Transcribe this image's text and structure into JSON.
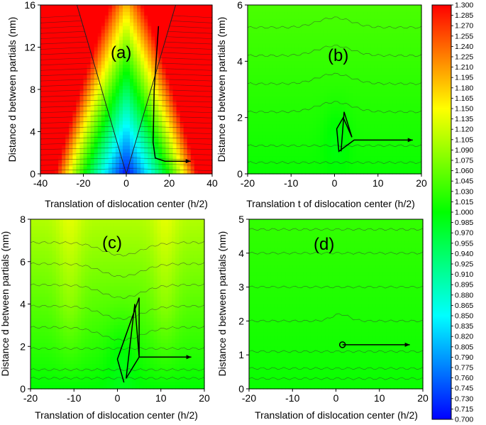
{
  "chart_data": [
    {
      "type": "heatmap",
      "panel_label": "(a)",
      "xlabel": "Translation of dislocation center (h/2)",
      "ylabel": "Distance d between partials (nm)",
      "xlim": [
        -40,
        40
      ],
      "ylim": [
        0,
        16
      ],
      "xticks": [
        -40,
        -20,
        0,
        20,
        40
      ],
      "yticks": [
        0,
        4,
        8,
        12,
        16
      ],
      "field": "v-shaped valley",
      "path": [
        [
          15,
          14
        ],
        [
          13,
          8
        ],
        [
          12.5,
          3
        ],
        [
          13.5,
          1.5
        ],
        [
          18,
          1.2
        ],
        [
          30,
          1.2
        ]
      ]
    },
    {
      "type": "heatmap",
      "panel_label": "(b)",
      "xlabel": "Translation t of dislocation center (h/2)",
      "ylabel": "Distance d between partials (nm)",
      "xlim": [
        -20,
        20
      ],
      "ylim": [
        0,
        6
      ],
      "xticks": [
        -20,
        -10,
        0,
        10,
        20
      ],
      "yticks": [
        0,
        2,
        4,
        6
      ],
      "field": "central minimum",
      "path": [
        [
          1.5,
          0.8
        ],
        [
          2.2,
          2.2
        ],
        [
          4.0,
          1.3
        ],
        [
          2.0,
          2.0
        ],
        [
          0.5,
          1.6
        ],
        [
          1.0,
          0.8
        ],
        [
          4.5,
          1.2
        ],
        [
          18,
          1.2
        ]
      ]
    },
    {
      "type": "heatmap",
      "panel_label": "(c)",
      "xlabel": "Translation of dislocation center (h/2)",
      "ylabel": "Distance d between partials (nm)",
      "xlim": [
        -20,
        20
      ],
      "ylim": [
        0,
        8
      ],
      "xticks": [
        -20,
        -10,
        0,
        10,
        20
      ],
      "yticks": [
        0,
        2,
        4,
        6,
        8
      ],
      "field": "central trough with side walls",
      "path": [
        [
          1.5,
          0.3
        ],
        [
          0,
          1.4
        ],
        [
          5,
          4.3
        ],
        [
          5,
          1.5
        ],
        [
          4,
          4.0
        ],
        [
          2,
          0.5
        ],
        [
          5,
          1.5
        ],
        [
          17,
          1.5
        ]
      ]
    },
    {
      "type": "heatmap",
      "panel_label": "(d)",
      "xlabel": "Translation of dislocation center (h/2)",
      "ylabel": "Distance d between partials (nm)",
      "xlim": [
        -20,
        20
      ],
      "ylim": [
        0,
        5
      ],
      "xticks": [
        -20,
        -10,
        0,
        10,
        20
      ],
      "yticks": [
        0,
        1,
        2,
        3,
        4,
        5
      ],
      "field": "nearly flat",
      "path": [
        [
          1.5,
          1.3
        ],
        [
          17,
          1.3
        ]
      ]
    }
  ],
  "colorbar": {
    "min": 0.7,
    "max": 1.3,
    "step": 0.015,
    "labels": [
      "1.300",
      "1.285",
      "1.270",
      "1.255",
      "1.240",
      "1.225",
      "1.210",
      "1.195",
      "1.180",
      "1.165",
      "1.150",
      "1.135",
      "1.120",
      "1.105",
      "1.090",
      "1.075",
      "1.060",
      "1.045",
      "1.030",
      "1.015",
      "1.000",
      "0.985",
      "0.970",
      "0.955",
      "0.940",
      "0.925",
      "0.910",
      "0.895",
      "0.880",
      "0.865",
      "0.850",
      "0.835",
      "0.820",
      "0.805",
      "0.790",
      "0.775",
      "0.760",
      "0.745",
      "0.730",
      "0.715",
      "0.700"
    ]
  }
}
